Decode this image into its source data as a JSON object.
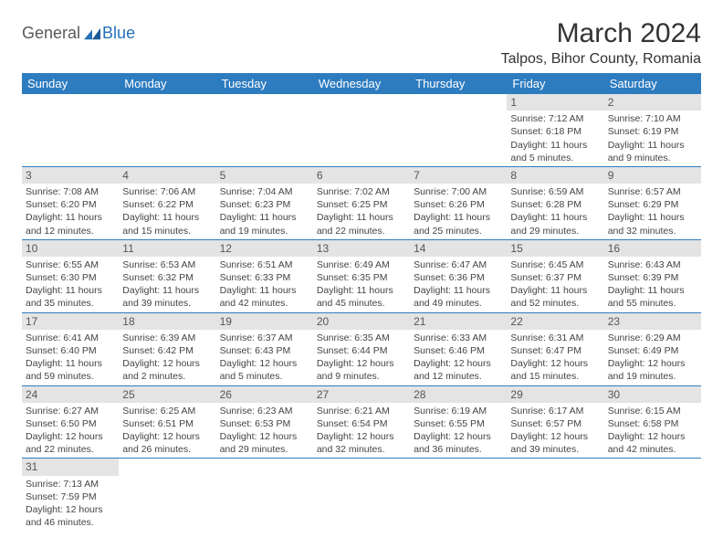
{
  "logo": {
    "text1": "General",
    "text2": "Blue"
  },
  "title": "March 2024",
  "location": "Talpos, Bihor County, Romania",
  "colors": {
    "header_bg": "#2e7cc0",
    "header_text": "#ffffff",
    "daynum_bg": "#e4e4e4",
    "border": "#2e7cc0",
    "logo_gray": "#5a5a5a",
    "logo_blue": "#2470b8"
  },
  "weekdays": [
    "Sunday",
    "Monday",
    "Tuesday",
    "Wednesday",
    "Thursday",
    "Friday",
    "Saturday"
  ],
  "rows": [
    [
      null,
      null,
      null,
      null,
      null,
      {
        "n": "1",
        "sr": "Sunrise: 7:12 AM",
        "ss": "Sunset: 6:18 PM",
        "dl": "Daylight: 11 hours and 5 minutes."
      },
      {
        "n": "2",
        "sr": "Sunrise: 7:10 AM",
        "ss": "Sunset: 6:19 PM",
        "dl": "Daylight: 11 hours and 9 minutes."
      }
    ],
    [
      {
        "n": "3",
        "sr": "Sunrise: 7:08 AM",
        "ss": "Sunset: 6:20 PM",
        "dl": "Daylight: 11 hours and 12 minutes."
      },
      {
        "n": "4",
        "sr": "Sunrise: 7:06 AM",
        "ss": "Sunset: 6:22 PM",
        "dl": "Daylight: 11 hours and 15 minutes."
      },
      {
        "n": "5",
        "sr": "Sunrise: 7:04 AM",
        "ss": "Sunset: 6:23 PM",
        "dl": "Daylight: 11 hours and 19 minutes."
      },
      {
        "n": "6",
        "sr": "Sunrise: 7:02 AM",
        "ss": "Sunset: 6:25 PM",
        "dl": "Daylight: 11 hours and 22 minutes."
      },
      {
        "n": "7",
        "sr": "Sunrise: 7:00 AM",
        "ss": "Sunset: 6:26 PM",
        "dl": "Daylight: 11 hours and 25 minutes."
      },
      {
        "n": "8",
        "sr": "Sunrise: 6:59 AM",
        "ss": "Sunset: 6:28 PM",
        "dl": "Daylight: 11 hours and 29 minutes."
      },
      {
        "n": "9",
        "sr": "Sunrise: 6:57 AM",
        "ss": "Sunset: 6:29 PM",
        "dl": "Daylight: 11 hours and 32 minutes."
      }
    ],
    [
      {
        "n": "10",
        "sr": "Sunrise: 6:55 AM",
        "ss": "Sunset: 6:30 PM",
        "dl": "Daylight: 11 hours and 35 minutes."
      },
      {
        "n": "11",
        "sr": "Sunrise: 6:53 AM",
        "ss": "Sunset: 6:32 PM",
        "dl": "Daylight: 11 hours and 39 minutes."
      },
      {
        "n": "12",
        "sr": "Sunrise: 6:51 AM",
        "ss": "Sunset: 6:33 PM",
        "dl": "Daylight: 11 hours and 42 minutes."
      },
      {
        "n": "13",
        "sr": "Sunrise: 6:49 AM",
        "ss": "Sunset: 6:35 PM",
        "dl": "Daylight: 11 hours and 45 minutes."
      },
      {
        "n": "14",
        "sr": "Sunrise: 6:47 AM",
        "ss": "Sunset: 6:36 PM",
        "dl": "Daylight: 11 hours and 49 minutes."
      },
      {
        "n": "15",
        "sr": "Sunrise: 6:45 AM",
        "ss": "Sunset: 6:37 PM",
        "dl": "Daylight: 11 hours and 52 minutes."
      },
      {
        "n": "16",
        "sr": "Sunrise: 6:43 AM",
        "ss": "Sunset: 6:39 PM",
        "dl": "Daylight: 11 hours and 55 minutes."
      }
    ],
    [
      {
        "n": "17",
        "sr": "Sunrise: 6:41 AM",
        "ss": "Sunset: 6:40 PM",
        "dl": "Daylight: 11 hours and 59 minutes."
      },
      {
        "n": "18",
        "sr": "Sunrise: 6:39 AM",
        "ss": "Sunset: 6:42 PM",
        "dl": "Daylight: 12 hours and 2 minutes."
      },
      {
        "n": "19",
        "sr": "Sunrise: 6:37 AM",
        "ss": "Sunset: 6:43 PM",
        "dl": "Daylight: 12 hours and 5 minutes."
      },
      {
        "n": "20",
        "sr": "Sunrise: 6:35 AM",
        "ss": "Sunset: 6:44 PM",
        "dl": "Daylight: 12 hours and 9 minutes."
      },
      {
        "n": "21",
        "sr": "Sunrise: 6:33 AM",
        "ss": "Sunset: 6:46 PM",
        "dl": "Daylight: 12 hours and 12 minutes."
      },
      {
        "n": "22",
        "sr": "Sunrise: 6:31 AM",
        "ss": "Sunset: 6:47 PM",
        "dl": "Daylight: 12 hours and 15 minutes."
      },
      {
        "n": "23",
        "sr": "Sunrise: 6:29 AM",
        "ss": "Sunset: 6:49 PM",
        "dl": "Daylight: 12 hours and 19 minutes."
      }
    ],
    [
      {
        "n": "24",
        "sr": "Sunrise: 6:27 AM",
        "ss": "Sunset: 6:50 PM",
        "dl": "Daylight: 12 hours and 22 minutes."
      },
      {
        "n": "25",
        "sr": "Sunrise: 6:25 AM",
        "ss": "Sunset: 6:51 PM",
        "dl": "Daylight: 12 hours and 26 minutes."
      },
      {
        "n": "26",
        "sr": "Sunrise: 6:23 AM",
        "ss": "Sunset: 6:53 PM",
        "dl": "Daylight: 12 hours and 29 minutes."
      },
      {
        "n": "27",
        "sr": "Sunrise: 6:21 AM",
        "ss": "Sunset: 6:54 PM",
        "dl": "Daylight: 12 hours and 32 minutes."
      },
      {
        "n": "28",
        "sr": "Sunrise: 6:19 AM",
        "ss": "Sunset: 6:55 PM",
        "dl": "Daylight: 12 hours and 36 minutes."
      },
      {
        "n": "29",
        "sr": "Sunrise: 6:17 AM",
        "ss": "Sunset: 6:57 PM",
        "dl": "Daylight: 12 hours and 39 minutes."
      },
      {
        "n": "30",
        "sr": "Sunrise: 6:15 AM",
        "ss": "Sunset: 6:58 PM",
        "dl": "Daylight: 12 hours and 42 minutes."
      }
    ],
    [
      {
        "n": "31",
        "sr": "Sunrise: 7:13 AM",
        "ss": "Sunset: 7:59 PM",
        "dl": "Daylight: 12 hours and 46 minutes."
      },
      null,
      null,
      null,
      null,
      null,
      null
    ]
  ]
}
